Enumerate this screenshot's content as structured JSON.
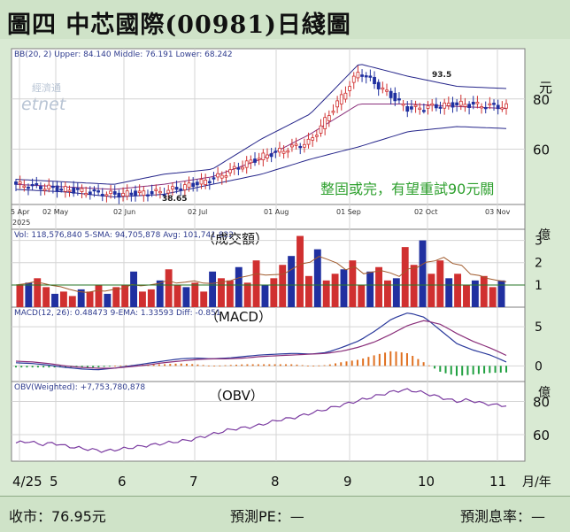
{
  "title": "圖四  中芯國際(00981)日綫圖",
  "footer": {
    "close": "收市：76.95元",
    "pe": "預測PE：—",
    "yield": "預測息率：—"
  },
  "panels": {
    "price": {
      "info": "BB(20, 2)  Upper: 84.140  Middle: 76.191  Lower: 68.242",
      "watermark1": "經濟通",
      "watermark2": "etnet",
      "annotation": "整固或完，有望重試90元關",
      "high_label": "93.5",
      "low_label": "38.65",
      "unit": "元",
      "date_labels": [
        "5 Apr",
        "02 May",
        "02 Jun",
        "02 Jul",
        "01 Aug",
        "01 Sep",
        "02 Oct",
        "03 Nov"
      ],
      "year_label": "2025"
    },
    "volume": {
      "info": "Vol: 118,576,840  5-SMA: 94,705,878  Avg: 101,741,822",
      "label": "（成交額）",
      "unit": "億"
    },
    "macd": {
      "info": "MACD(12, 26): 0.48473  9-EMA: 1.33593  Diff: -0.851",
      "label": "（MACD）"
    },
    "obv": {
      "info": "OBV(Weighted): +7,753,780,878",
      "label": "（OBV）",
      "unit": "億"
    },
    "x_axis": {
      "ticks": [
        "4/25",
        "5",
        "6",
        "7",
        "8",
        "9",
        "10",
        "11"
      ],
      "unit": "月/年"
    }
  },
  "chart_data": [
    {
      "type": "candlestick",
      "title": "",
      "series": [
        {
          "name": "Close",
          "x": [
            "2025-04",
            "2025-05",
            "2025-06",
            "2025-07",
            "2025-08",
            "2025-09",
            "2025-10-02",
            "2025-10-10",
            "2025-10-20",
            "2025-11-03",
            "2025-11-10"
          ],
          "values": [
            46,
            44,
            42,
            43,
            48,
            57,
            63,
            91,
            76,
            78,
            76.95
          ]
        },
        {
          "name": "Upper",
          "values": [
            48,
            47,
            46,
            50,
            52,
            64,
            74,
            94,
            89,
            85,
            84.14
          ]
        },
        {
          "name": "Middle",
          "values": [
            46,
            45,
            44,
            46,
            49,
            56,
            66,
            78,
            78,
            77,
            76.19
          ]
        },
        {
          "name": "Lower",
          "values": [
            44,
            43,
            41,
            42,
            46,
            50,
            56,
            61,
            67,
            69,
            68.24
          ]
        }
      ],
      "yticks": [
        60,
        80
      ],
      "ylim": [
        38,
        100
      ],
      "annotations": [
        "93.5",
        "38.65",
        "整固或完，有望重試90元關"
      ]
    },
    {
      "type": "bar",
      "title": "",
      "series": [
        {
          "name": "Vol",
          "values": [
            1.0,
            1.1,
            1.3,
            0.9,
            0.6,
            0.7,
            0.5,
            0.8,
            0.7,
            1.0,
            0.6,
            0.9,
            1.0,
            1.6,
            0.7,
            0.8,
            1.2,
            1.7,
            1.0,
            0.9,
            1.1,
            0.7,
            1.6,
            1.3,
            1.2,
            1.8,
            1.1,
            2.1,
            1.0,
            1.3,
            1.9,
            2.3,
            3.2,
            1.4,
            2.6,
            1.2,
            1.5,
            1.7,
            2.1,
            1.0,
            1.6,
            1.8,
            1.2,
            1.3,
            2.7,
            1.9,
            3.0,
            1.5,
            2.1,
            1.3,
            1.5,
            1.0,
            1.2,
            1.4,
            0.9,
            1.2
          ]
        }
      ],
      "yticks": [
        1,
        2,
        3
      ],
      "ylim": [
        0,
        3.5
      ]
    },
    {
      "type": "line",
      "title": "",
      "series": [
        {
          "name": "MACD",
          "values": [
            0.4,
            0.3,
            0.1,
            -0.2,
            -0.4,
            -0.5,
            -0.3,
            0.0,
            0.3,
            0.6,
            0.9,
            1.0,
            0.9,
            1.0,
            1.2,
            1.4,
            1.5,
            1.6,
            1.5,
            1.7,
            2.4,
            3.2,
            4.5,
            6.0,
            6.8,
            6.2,
            4.5,
            2.8,
            2.0,
            1.4,
            0.5
          ]
        },
        {
          "name": "9-EMA",
          "values": [
            0.6,
            0.5,
            0.3,
            0.0,
            -0.2,
            -0.3,
            -0.3,
            -0.1,
            0.1,
            0.4,
            0.6,
            0.8,
            0.9,
            0.9,
            1.0,
            1.2,
            1.3,
            1.4,
            1.5,
            1.6,
            1.9,
            2.4,
            3.1,
            4.1,
            5.2,
            5.8,
            5.3,
            4.1,
            3.1,
            2.3,
            1.34
          ]
        }
      ],
      "yticks": [
        0,
        5
      ],
      "ylim": [
        -2,
        7.5
      ]
    },
    {
      "type": "line",
      "title": "",
      "series": [
        {
          "name": "OBV",
          "values": [
            55,
            56,
            54,
            55,
            53,
            52,
            51,
            50,
            51,
            52,
            53,
            54,
            55,
            56,
            57,
            59,
            61,
            63,
            64,
            65,
            67,
            69,
            70,
            72,
            74,
            76,
            78,
            80,
            82,
            84,
            86,
            87,
            86,
            84,
            82,
            80,
            81,
            79,
            78,
            77.5
          ]
        }
      ],
      "yticks": [
        60,
        80
      ],
      "ylim": [
        44,
        92
      ]
    }
  ]
}
